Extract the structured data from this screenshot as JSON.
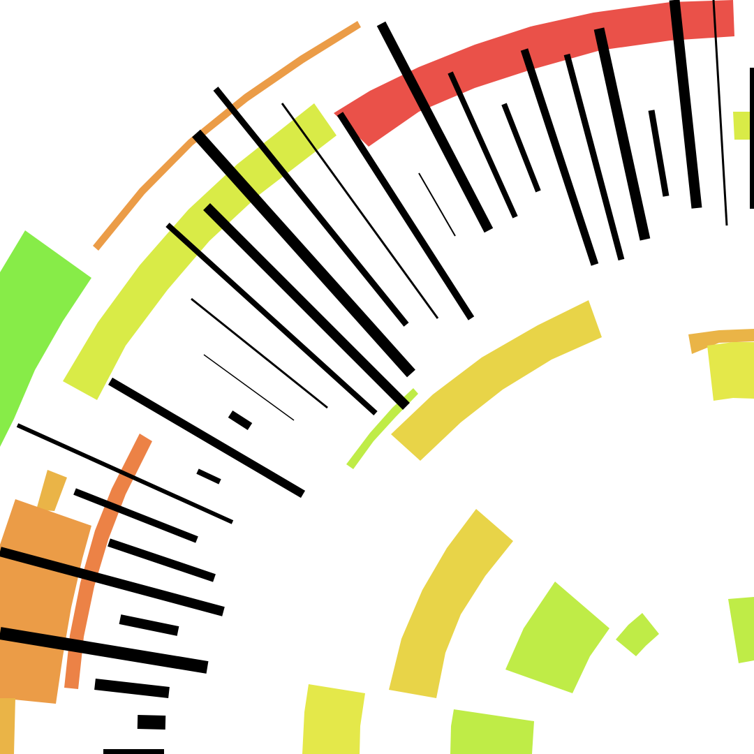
{
  "title": "",
  "palette": {
    "red": "#ea5149",
    "orange": "#eb9c47",
    "dark_orange": "#ec8246",
    "amber": "#eab447",
    "yellow": "#e8d448",
    "lemon": "#e4e84a",
    "chartreuse": "#d9eb47",
    "lime": "#bfec47",
    "green": "#87ec48",
    "ink": "#000000",
    "background": "#ffffff"
  },
  "shapes": {
    "ring_segments": 23,
    "tick_marks": 44
  }
}
